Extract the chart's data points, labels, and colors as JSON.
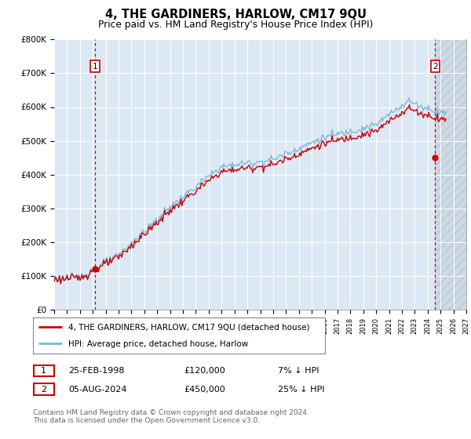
{
  "title": "4, THE GARDINERS, HARLOW, CM17 9QU",
  "subtitle": "Price paid vs. HM Land Registry's House Price Index (HPI)",
  "legend_line1": "4, THE GARDINERS, HARLOW, CM17 9QU (detached house)",
  "legend_line2": "HPI: Average price, detached house, Harlow",
  "annotation1_label": "1",
  "annotation1_date": "25-FEB-1998",
  "annotation1_price": "£120,000",
  "annotation1_hpi": "7% ↓ HPI",
  "annotation2_label": "2",
  "annotation2_date": "05-AUG-2024",
  "annotation2_price": "£450,000",
  "annotation2_hpi": "25% ↓ HPI",
  "footer": "Contains HM Land Registry data © Crown copyright and database right 2024.\nThis data is licensed under the Open Government Licence v3.0.",
  "sale1_year": 1998.15,
  "sale1_value": 120000,
  "sale2_year": 2024.59,
  "sale2_value": 450000,
  "ylim": [
    0,
    800000
  ],
  "xlim_start": 1995,
  "xlim_end": 2027,
  "hpi_color": "#7ab4d8",
  "price_color": "#cc0000",
  "bg_color": "#dce9f5",
  "grid_color": "#ffffff",
  "vline_color": "#cc0000",
  "hatch_bg": "#c8d8ea"
}
